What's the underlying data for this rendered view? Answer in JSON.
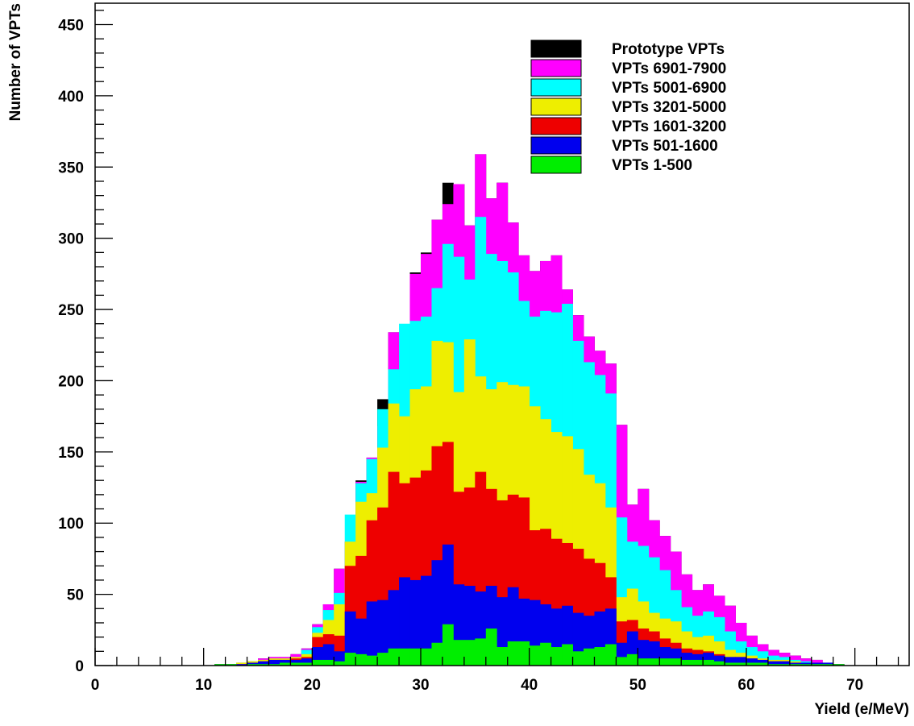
{
  "chart_data": {
    "type": "bar",
    "stacked": true,
    "title": "",
    "xlabel": "Yield (e/MeV)",
    "ylabel": "Number of VPTs",
    "xlim": [
      0,
      75
    ],
    "ylim": [
      0,
      465
    ],
    "bin_width": 1,
    "x_ticks": [
      "0",
      "10",
      "20",
      "30",
      "40",
      "50",
      "60",
      "70"
    ],
    "y_ticks": [
      "0",
      "50",
      "100",
      "150",
      "200",
      "250",
      "300",
      "350",
      "400",
      "450"
    ],
    "grid": false,
    "legend_position": "top-right",
    "x": [
      11,
      12,
      13,
      14,
      15,
      16,
      17,
      18,
      19,
      20,
      21,
      22,
      23,
      24,
      25,
      26,
      27,
      28,
      29,
      30,
      31,
      32,
      33,
      34,
      35,
      36,
      37,
      38,
      39,
      40,
      41,
      42,
      43,
      44,
      45,
      46,
      47,
      48,
      49,
      50,
      51,
      52,
      53,
      54,
      55,
      56,
      57,
      58,
      59,
      60,
      61,
      62,
      63,
      64,
      65,
      66,
      67,
      68
    ],
    "cumulative": [
      {
        "name": "VPTs 1-500",
        "color": "#00ee00",
        "values": [
          1,
          1,
          0,
          1,
          1,
          1,
          2,
          2,
          2,
          4,
          4,
          3,
          9,
          8,
          7,
          9,
          12,
          12,
          12,
          12,
          16,
          29,
          18,
          18,
          19,
          26,
          13,
          17,
          17,
          14,
          16,
          13,
          15,
          10,
          12,
          13,
          15,
          6,
          8,
          5,
          5,
          5,
          5,
          4,
          4,
          4,
          3,
          2,
          2,
          2,
          2,
          1,
          1,
          1,
          1,
          1,
          1,
          1
        ]
      },
      {
        "name": "VPTs 501-1600",
        "color": "#0000ee",
        "values": [
          1,
          1,
          1,
          2,
          3,
          4,
          4,
          4,
          5,
          13,
          15,
          10,
          38,
          33,
          45,
          46,
          53,
          62,
          60,
          63,
          74,
          85,
          57,
          56,
          52,
          56,
          48,
          55,
          47,
          46,
          43,
          40,
          42,
          37,
          35,
          38,
          40,
          16,
          24,
          18,
          17,
          13,
          12,
          9,
          8,
          9,
          7,
          6,
          6,
          5,
          4,
          3,
          3,
          2,
          2,
          2,
          2,
          1
        ]
      },
      {
        "name": "VPTs 1601-3200",
        "color": "#ee0000",
        "values": [
          1,
          1,
          1,
          2,
          3,
          4,
          4,
          5,
          6,
          20,
          22,
          21,
          70,
          77,
          102,
          111,
          136,
          128,
          132,
          137,
          154,
          157,
          122,
          125,
          136,
          124,
          116,
          120,
          118,
          95,
          96,
          89,
          86,
          82,
          75,
          72,
          62,
          31,
          32,
          26,
          24,
          19,
          16,
          12,
          11,
          10,
          8,
          6,
          6,
          5,
          4,
          3,
          3,
          2,
          2,
          2,
          1,
          1
        ]
      },
      {
        "name": "VPTs 3201-5000",
        "color": "#eeee00",
        "values": [
          1,
          1,
          2,
          3,
          4,
          5,
          5,
          6,
          8,
          23,
          32,
          43,
          87,
          115,
          121,
          153,
          184,
          175,
          194,
          196,
          228,
          227,
          192,
          229,
          203,
          194,
          199,
          197,
          196,
          182,
          173,
          164,
          161,
          152,
          134,
          128,
          111,
          48,
          54,
          45,
          37,
          33,
          31,
          24,
          20,
          21,
          17,
          11,
          9,
          7,
          5,
          4,
          4,
          3,
          2,
          2,
          1,
          1
        ]
      },
      {
        "name": "VPTs 5001-6900",
        "color": "#00ffff",
        "values": [
          1,
          1,
          2,
          3,
          4,
          5,
          5,
          6,
          11,
          27,
          39,
          51,
          106,
          128,
          145,
          180,
          208,
          240,
          242,
          245,
          265,
          296,
          287,
          271,
          315,
          289,
          284,
          276,
          256,
          245,
          249,
          248,
          254,
          228,
          213,
          204,
          191,
          104,
          87,
          84,
          76,
          67,
          53,
          41,
          35,
          38,
          34,
          24,
          17,
          13,
          10,
          7,
          6,
          4,
          3,
          2,
          2,
          1
        ]
      },
      {
        "name": "VPTs 6901-7900",
        "color": "#ff00ff",
        "values": [
          1,
          1,
          2,
          3,
          5,
          6,
          6,
          8,
          12,
          29,
          43,
          68,
          87,
          129,
          146,
          168,
          234,
          186,
          275,
          289,
          313,
          324,
          338,
          309,
          359,
          328,
          339,
          311,
          288,
          277,
          284,
          288,
          264,
          246,
          231,
          221,
          212,
          169,
          113,
          124,
          102,
          91,
          80,
          64,
          53,
          57,
          49,
          42,
          30,
          21,
          15,
          11,
          9,
          7,
          5,
          4,
          2,
          1
        ]
      },
      {
        "name": "Prototype VPTs",
        "color": "#000000",
        "values": [
          1,
          1,
          2,
          3,
          5,
          6,
          6,
          8,
          12,
          29,
          43,
          68,
          87,
          130,
          146,
          187,
          234,
          186,
          276,
          290,
          313,
          339,
          338,
          309,
          359,
          328,
          339,
          311,
          288,
          277,
          284,
          288,
          264,
          246,
          231,
          221,
          212,
          169,
          113,
          124,
          102,
          91,
          80,
          64,
          53,
          57,
          49,
          42,
          30,
          21,
          15,
          11,
          9,
          7,
          5,
          4,
          2,
          1
        ]
      }
    ]
  },
  "legend": {
    "items": [
      {
        "label": "Prototype VPTs",
        "color": "#000000"
      },
      {
        "label": "VPTs 6901-7900",
        "color": "#ff00ff"
      },
      {
        "label": "VPTs 5001-6900",
        "color": "#00ffff"
      },
      {
        "label": "VPTs 3201-5000",
        "color": "#eeee00"
      },
      {
        "label": "VPTs 1601-3200",
        "color": "#ee0000"
      },
      {
        "label": "VPTs 501-1600",
        "color": "#0000ee"
      },
      {
        "label": "VPTs 1-500",
        "color": "#00ee00"
      }
    ]
  }
}
